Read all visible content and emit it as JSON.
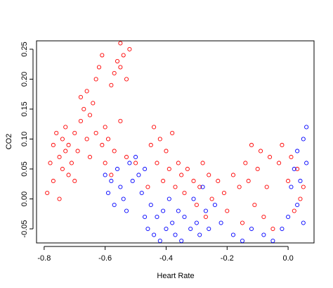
{
  "chart_data": {
    "type": "scatter",
    "x_label": "Heart Rate",
    "y_label": "CO2",
    "xlim": [
      -0.825,
      0.085
    ],
    "ylim": [
      -0.0735,
      0.264
    ],
    "xticks": [
      -0.8,
      -0.6,
      -0.4,
      -0.2,
      {
        "value": 0,
        "label": "0.0"
      }
    ],
    "yticks": [
      -0.05,
      {
        "value": 0,
        "label": "0.00"
      },
      0.05,
      {
        "value": 0.1,
        "label": "0.10"
      },
      0.15,
      {
        "value": 0.2,
        "label": "0.20"
      },
      0.25
    ],
    "series": [
      {
        "color": "#ff0000",
        "x": [
          -0.79,
          -0.78,
          -0.77,
          -0.77,
          -0.76,
          -0.75,
          -0.75,
          -0.74,
          -0.74,
          -0.73,
          -0.73,
          -0.72,
          -0.72,
          -0.71,
          -0.7,
          -0.7,
          -0.69,
          -0.68,
          -0.68,
          -0.67,
          -0.66,
          -0.66,
          -0.65,
          -0.65,
          -0.64,
          -0.63,
          -0.63,
          -0.62,
          -0.61,
          -0.61,
          -0.6,
          -0.6,
          -0.59,
          -0.58,
          -0.57,
          -0.56,
          -0.55,
          -0.55,
          -0.54,
          -0.53,
          -0.52,
          -0.58,
          -0.57,
          -0.55,
          -0.53,
          -0.5,
          -0.46,
          -0.45,
          -0.44,
          -0.43,
          -0.42,
          -0.41,
          -0.4,
          -0.39,
          -0.38,
          -0.37,
          -0.36,
          -0.35,
          -0.34,
          -0.33,
          -0.31,
          -0.3,
          -0.29,
          -0.28,
          -0.27,
          -0.26,
          -0.25,
          -0.23,
          -0.21,
          -0.2,
          -0.18,
          -0.16,
          -0.15,
          -0.14,
          -0.13,
          -0.12,
          -0.11,
          -0.1,
          -0.09,
          -0.08,
          -0.07,
          -0.06,
          -0.05,
          -0.03,
          -0.02,
          0.0,
          0.01,
          0.02,
          0.03,
          0.04,
          0.05
        ],
        "values": [
          0.01,
          0.06,
          0.09,
          0.03,
          0.11,
          0.07,
          0.0,
          0.05,
          0.1,
          0.08,
          0.12,
          0.04,
          0.09,
          0.06,
          0.11,
          0.03,
          0.08,
          0.13,
          0.17,
          0.15,
          0.18,
          0.1,
          0.14,
          0.07,
          0.16,
          0.11,
          0.2,
          0.22,
          0.24,
          0.09,
          0.12,
          0.06,
          0.1,
          0.19,
          0.21,
          0.23,
          0.26,
          0.22,
          0.24,
          0.2,
          0.25,
          0.04,
          0.08,
          0.13,
          0.07,
          0.06,
          0.02,
          0.09,
          0.12,
          0.06,
          0.1,
          0.03,
          0.08,
          0.05,
          0.11,
          0.02,
          0.06,
          0.04,
          0.01,
          0.05,
          0.03,
          -0.01,
          0.02,
          0.06,
          -0.03,
          0.04,
          0.0,
          0.03,
          0.01,
          -0.02,
          0.04,
          0.02,
          -0.04,
          0.06,
          0.03,
          0.09,
          -0.01,
          0.05,
          0.08,
          -0.03,
          0.02,
          0.07,
          -0.05,
          0.06,
          0.09,
          0.03,
          0.07,
          -0.02,
          0.05,
          0.0,
          0.02
        ]
      },
      {
        "color": "#0000ff",
        "x": [
          -0.6,
          -0.59,
          -0.58,
          -0.57,
          -0.56,
          -0.55,
          -0.54,
          -0.53,
          -0.52,
          -0.51,
          -0.5,
          -0.49,
          -0.48,
          -0.47,
          -0.47,
          -0.46,
          -0.45,
          -0.44,
          -0.43,
          -0.42,
          -0.41,
          -0.4,
          -0.39,
          -0.38,
          -0.37,
          -0.36,
          -0.35,
          -0.34,
          -0.32,
          -0.31,
          -0.3,
          -0.29,
          -0.28,
          -0.27,
          -0.26,
          -0.24,
          -0.22,
          -0.18,
          -0.15,
          -0.12,
          -0.08,
          -0.05,
          -0.02,
          0.0,
          0.01,
          0.02,
          0.03,
          0.03,
          0.04,
          0.05,
          0.05,
          0.06,
          0.06
        ],
        "values": [
          0.04,
          0.01,
          0.03,
          -0.01,
          0.05,
          0.02,
          0.0,
          -0.02,
          0.06,
          0.03,
          0.07,
          0.04,
          0.01,
          0.05,
          -0.03,
          -0.05,
          -0.01,
          -0.06,
          -0.03,
          -0.07,
          -0.02,
          -0.05,
          0.0,
          -0.04,
          -0.06,
          -0.02,
          -0.07,
          -0.03,
          -0.05,
          0.0,
          -0.04,
          -0.06,
          0.02,
          -0.02,
          -0.05,
          -0.01,
          -0.04,
          -0.06,
          -0.07,
          -0.05,
          -0.06,
          -0.07,
          -0.05,
          -0.03,
          0.02,
          0.05,
          -0.01,
          0.08,
          0.03,
          0.1,
          -0.04,
          0.12,
          0.06
        ]
      }
    ]
  }
}
